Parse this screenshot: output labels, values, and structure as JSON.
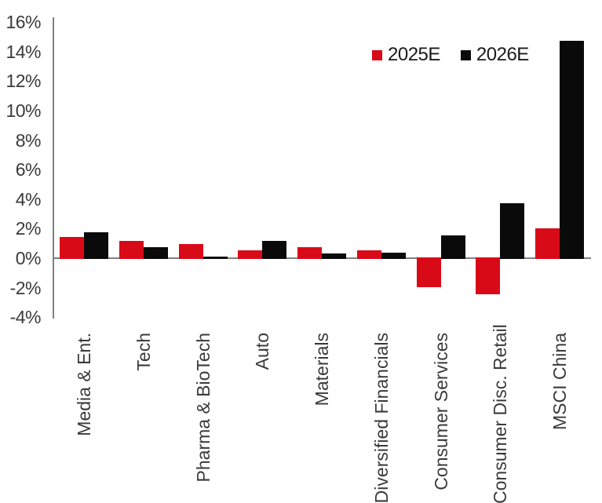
{
  "chart_data": {
    "type": "bar",
    "title": "",
    "xlabel": "",
    "ylabel": "",
    "categories": [
      "Media & Ent.",
      "Tech",
      "Pharma & BioTech",
      "Auto",
      "Materials",
      "Diversified Financials",
      "Consumer Services",
      "Consumer Disc. Retail",
      "MSCI China"
    ],
    "series": [
      {
        "name": "2025E",
        "color": "#d90a18",
        "values": [
          1.5,
          1.2,
          1.0,
          0.6,
          0.8,
          0.6,
          -2.0,
          -2.5,
          2.1
        ]
      },
      {
        "name": "2026E",
        "color": "#0a0a0a",
        "values": [
          1.8,
          0.8,
          0.15,
          1.2,
          0.35,
          0.4,
          1.6,
          3.8,
          14.8
        ]
      }
    ],
    "ylim": [
      -4,
      16
    ],
    "y_ticks": [
      "16%",
      "14%",
      "12%",
      "10%",
      "8%",
      "6%",
      "4%",
      "2%",
      "0%",
      "-2%",
      "-4%"
    ],
    "y_tick_values": [
      16,
      14,
      12,
      10,
      8,
      6,
      4,
      2,
      0,
      -2,
      -4
    ],
    "grid": false,
    "legend_position": "top-right",
    "axis_color": "#808080",
    "text_color": "#3a3a3a",
    "background_color": "#ffffff"
  }
}
